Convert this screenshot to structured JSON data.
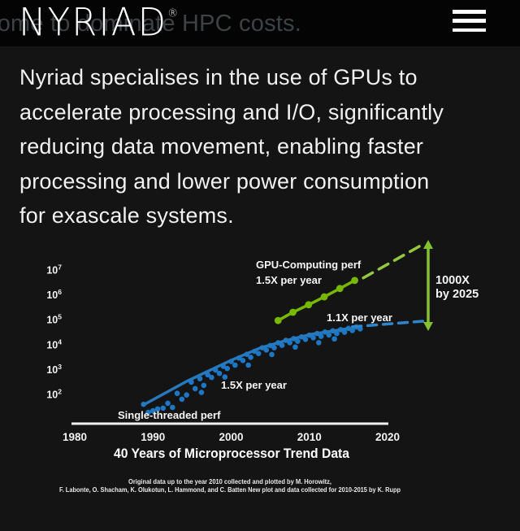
{
  "header": {
    "logo_text": "NYRIAD",
    "registered_mark": "®",
    "background_text": "come to dominate HPC costs.",
    "menu_icon": "hamburger-icon"
  },
  "intro": {
    "lines": [
      "Nyriad specialises in the use of GPUs to",
      "accelerate processing and I/O, significantly",
      "reducing data movement, enabling faster",
      "processing and lower power consumption",
      "for exascale systems."
    ]
  },
  "chart_data": {
    "type": "scatter",
    "title": "40 Years of Microprocessor Trend Data",
    "x_ticks": [
      1980,
      1990,
      2000,
      2010,
      2020
    ],
    "y_tick_exponents": [
      7,
      6,
      5,
      4,
      3,
      2
    ],
    "x_range": [
      1980,
      2025
    ],
    "y_log10_range": [
      1.5,
      8.2
    ],
    "grid": false,
    "legend": "none",
    "colors": {
      "cpu_point": "#1d77c4",
      "cpu_trend": "#2779bd",
      "cpu_projection": "#2f85c9",
      "gpu_line": "#76b900",
      "gpu_projection": "#94c83d",
      "arrow": "#84c12d",
      "axis": "#f0f0f0",
      "text": "#f2f2f2"
    },
    "annotations": {
      "gpu_label": "GPU-Computing perf",
      "gpu_rate": "1.5X per year",
      "cpu_rate_recent": "1.1X per year",
      "cpu_rate_historic": "1.5X per year",
      "cpu_label": "Single-threaded perf",
      "gap_line1": "1000X",
      "gap_line2": "by 2025"
    },
    "series": [
      {
        "name": "single-threaded-points",
        "type": "scatter",
        "points": [
          [
            1988.8,
            40
          ],
          [
            1989.4,
            19
          ],
          [
            1990.0,
            22
          ],
          [
            1990.6,
            26
          ],
          [
            1991.3,
            28
          ],
          [
            1991.9,
            44
          ],
          [
            1992.5,
            30
          ],
          [
            1993.1,
            110
          ],
          [
            1993.7,
            64
          ],
          [
            1994.3,
            95
          ],
          [
            1994.9,
            310
          ],
          [
            1995.4,
            170
          ],
          [
            1996.0,
            430
          ],
          [
            1996.2,
            120
          ],
          [
            1996.5,
            230
          ],
          [
            1997.0,
            620
          ],
          [
            1997.5,
            480
          ],
          [
            1998.0,
            950
          ],
          [
            1998.5,
            700
          ],
          [
            1999.0,
            1350
          ],
          [
            1999.2,
            500
          ],
          [
            1999.5,
            1100
          ],
          [
            2000.0,
            2100
          ],
          [
            2000.5,
            1500
          ],
          [
            2001.0,
            2900
          ],
          [
            2001.5,
            2300
          ],
          [
            2002.0,
            4100
          ],
          [
            2002.2,
            1500
          ],
          [
            2002.5,
            3100
          ],
          [
            2003.0,
            5400
          ],
          [
            2003.5,
            4400
          ],
          [
            2004.0,
            7500
          ],
          [
            2004.5,
            6100
          ],
          [
            2005.0,
            9200
          ],
          [
            2005.2,
            4000
          ],
          [
            2005.5,
            7500
          ],
          [
            2006.0,
            11800
          ],
          [
            2006.5,
            9400
          ],
          [
            2007.0,
            14800
          ],
          [
            2007.5,
            12000
          ],
          [
            2008.0,
            17500
          ],
          [
            2008.2,
            8000
          ],
          [
            2008.5,
            13700
          ],
          [
            2009.0,
            20500
          ],
          [
            2009.5,
            16300
          ],
          [
            2010.0,
            24000
          ],
          [
            2010.5,
            19000
          ],
          [
            2011.0,
            28000
          ],
          [
            2011.2,
            12000
          ],
          [
            2011.5,
            21500
          ],
          [
            2012.0,
            32000
          ],
          [
            2012.5,
            24500
          ],
          [
            2013.0,
            36000
          ],
          [
            2013.2,
            17000
          ],
          [
            2013.5,
            28000
          ],
          [
            2014.0,
            40000
          ],
          [
            2014.5,
            31500
          ],
          [
            2015.0,
            45000
          ],
          [
            2015.5,
            37000
          ],
          [
            2016.0,
            51000
          ],
          [
            2016.5,
            43000
          ]
        ]
      },
      {
        "name": "single-threaded-trend",
        "type": "line",
        "rate_label": "1.5X per year",
        "points": [
          [
            1988.8,
            38
          ],
          [
            1994.3,
            333
          ],
          [
            1999.8,
            2200
          ],
          [
            2003.7,
            7300
          ],
          [
            2006.8,
            14000
          ],
          [
            2010.2,
            26000
          ],
          [
            2015.1,
            45000
          ]
        ]
      },
      {
        "name": "single-threaded-projection",
        "type": "dashed",
        "rate_label": "1.1X per year",
        "points": [
          [
            2015.5,
            52000
          ],
          [
            2024.6,
            88000
          ]
        ]
      },
      {
        "name": "gpu-computing-perf",
        "type": "line-markers",
        "rate_label": "1.5X per year",
        "points": [
          [
            2006.0,
            93000
          ],
          [
            2007.9,
            200000
          ],
          [
            2009.9,
            400000
          ],
          [
            2011.9,
            830000
          ],
          [
            2013.9,
            1800000
          ],
          [
            2015.8,
            3800000
          ]
        ]
      },
      {
        "name": "gpu-projection",
        "type": "dashed",
        "points": [
          [
            2016.9,
            4800000
          ],
          [
            2024.8,
            120000000
          ]
        ]
      }
    ],
    "footnote_line1": "Original data up to the year 2010 collected and plotted by M. Horowitz,",
    "footnote_line2": "F. Labonte, O. Shacham, K. Olukotun, L. Hammond, and C. Batten New plot and data collected for 2010-2015 by K. Rupp"
  }
}
